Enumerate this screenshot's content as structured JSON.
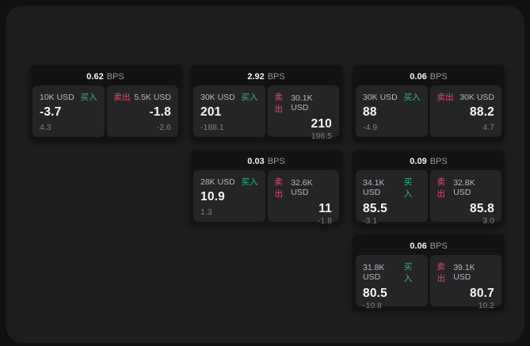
{
  "labels": {
    "unit": "BPS",
    "buy": "买入",
    "sell": "卖出"
  },
  "colors": {
    "buy_green": "#2ebd85",
    "sell_red": "#e24b6c",
    "surface": "#1d1d1f",
    "card": "#131315",
    "panel": "#252528"
  },
  "cards": [
    {
      "bps": "0.62",
      "col": 0,
      "row": 0,
      "buy": {
        "amount": "10K USD",
        "value": "-3.7",
        "sub": "4.3"
      },
      "sell": {
        "amount": "5.5K USD",
        "value": "-1.8",
        "sub": "-2.6"
      }
    },
    {
      "bps": "2.92",
      "col": 1,
      "row": 0,
      "buy": {
        "amount": "30K USD",
        "value": "201",
        "sub": "-188.1"
      },
      "sell": {
        "amount": "30.1K USD",
        "value": "210",
        "sub": "196.5"
      }
    },
    {
      "bps": "0.06",
      "col": 2,
      "row": 0,
      "buy": {
        "amount": "30K USD",
        "value": "88",
        "sub": "-4.9"
      },
      "sell": {
        "amount": "30K USD",
        "value": "88.2",
        "sub": "4.7"
      }
    },
    {
      "bps": "0.03",
      "col": 1,
      "row": 1,
      "buy": {
        "amount": "28K USD",
        "value": "10.9",
        "sub": "1.3"
      },
      "sell": {
        "amount": "32.6K USD",
        "value": "11",
        "sub": "-1.8"
      }
    },
    {
      "bps": "0.09",
      "col": 2,
      "row": 1,
      "buy": {
        "amount": "34.1K USD",
        "value": "85.5",
        "sub": "-3.1"
      },
      "sell": {
        "amount": "32.8K USD",
        "value": "85.8",
        "sub": "3.0"
      }
    },
    {
      "bps": "0.06",
      "col": 2,
      "row": 2,
      "buy": {
        "amount": "31.8K USD",
        "value": "80.5",
        "sub": "-10.8"
      },
      "sell": {
        "amount": "39.1K USD",
        "value": "80.7",
        "sub": "10.2"
      }
    }
  ]
}
